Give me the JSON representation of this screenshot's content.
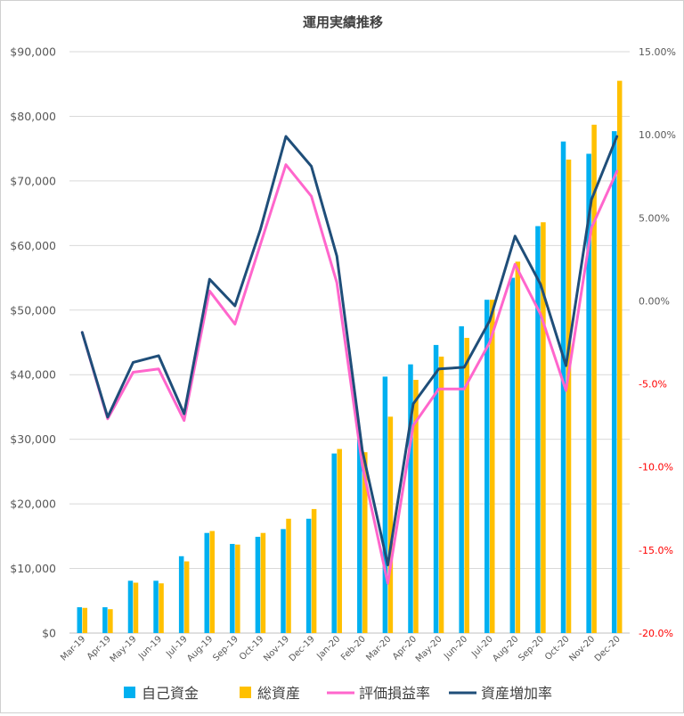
{
  "chart_data": {
    "type": "bar",
    "title": "運用実績推移",
    "categories": [
      "Mar-19",
      "Apr-19",
      "May-19",
      "Jun-19",
      "Jul-19",
      "Aug-19",
      "Sep-19",
      "Oct-19",
      "Nov-19",
      "Dec-19",
      "Jan-20",
      "Feb-20",
      "Mar-20",
      "Apr-20",
      "May-20",
      "Jun-20",
      "Jul-20",
      "Aug-20",
      "Sep-20",
      "Oct-20",
      "Nov-20",
      "Dec-20"
    ],
    "left_axis": {
      "ylim": [
        0,
        90000
      ],
      "ticks": [
        "$0",
        "$10,000",
        "$20,000",
        "$30,000",
        "$40,000",
        "$50,000",
        "$60,000",
        "$70,000",
        "$80,000",
        "$90,000"
      ],
      "tick_values": [
        0,
        10000,
        20000,
        30000,
        40000,
        50000,
        60000,
        70000,
        80000,
        90000
      ]
    },
    "right_axis": {
      "ylim": [
        -20,
        15
      ],
      "ticks": [
        "-20.0%",
        "-15.0%",
        "-10.0%",
        "-5.0%",
        "0.00%",
        "5.00%",
        "10.00%",
        "15.00%"
      ],
      "tick_values": [
        -20,
        -15,
        -10,
        -5,
        0,
        5,
        10,
        15
      ],
      "negative_color": "#ff0000",
      "positive_color": "#595959"
    },
    "series": [
      {
        "name": "自己資金",
        "kind": "bar",
        "axis": "left",
        "color": "#00b0f0",
        "values": [
          4000,
          4000,
          8100,
          8100,
          11900,
          15500,
          13800,
          14900,
          16100,
          17700,
          27800,
          30000,
          39700,
          41600,
          44600,
          47500,
          51600,
          55000,
          63000,
          76100,
          74200,
          77700
        ]
      },
      {
        "name": "総資産",
        "kind": "bar",
        "axis": "left",
        "color": "#ffc000",
        "values": [
          3900,
          3700,
          7800,
          7700,
          11100,
          15800,
          13700,
          15500,
          17700,
          19200,
          28500,
          28000,
          33500,
          39200,
          42800,
          45700,
          51600,
          57500,
          63600,
          73300,
          78700,
          85500
        ]
      },
      {
        "name": "評価損益率",
        "kind": "line",
        "axis": "right",
        "color": "#ff66cc",
        "values": [
          -1.9,
          -7.1,
          -4.3,
          -4.1,
          -7.2,
          0.6,
          -1.4,
          3.4,
          8.2,
          6.3,
          1.1,
          -9.9,
          -17.0,
          -7.5,
          -5.3,
          -5.3,
          -2.5,
          2.2,
          -0.8,
          -5.4,
          4.4,
          7.8
        ]
      },
      {
        "name": "資産増加率",
        "kind": "line",
        "axis": "right",
        "color": "#1f4e79",
        "values": [
          -1.9,
          -7.0,
          -3.7,
          -3.3,
          -6.8,
          1.3,
          -0.3,
          4.3,
          9.9,
          8.1,
          2.7,
          -9.0,
          -15.9,
          -6.2,
          -4.1,
          -4.0,
          -1.2,
          3.9,
          1.0,
          -3.9,
          6.1,
          9.9
        ]
      }
    ],
    "grid": true,
    "legend_position": "bottom"
  }
}
